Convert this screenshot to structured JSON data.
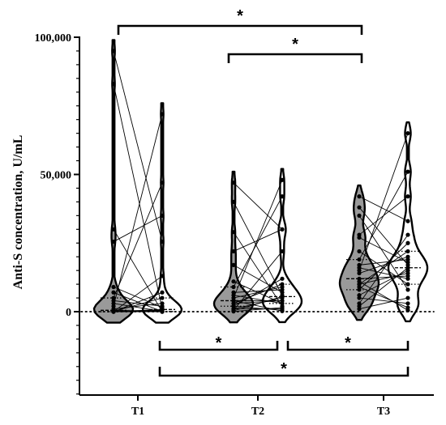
{
  "chart_data": {
    "type": "violin",
    "ylabel": "Anti-S concentration, U/mL",
    "ylim": [
      -30000,
      100000
    ],
    "yticks": [
      0,
      50000,
      100000
    ],
    "ytick_labels": [
      "0",
      "50,000",
      "100,000"
    ],
    "categories": [
      "T1",
      "T2",
      "T3"
    ],
    "reference_line_y": 0,
    "series": [
      {
        "group": "T1",
        "violin": "left",
        "values": [
          95000,
          83000,
          30000,
          25500,
          9000,
          7000,
          5000,
          4000,
          3000,
          2000,
          1000,
          500,
          200,
          100,
          50,
          50,
          0,
          0,
          0,
          0,
          0,
          0
        ]
      },
      {
        "group": "T1",
        "violin": "right",
        "values": [
          72000,
          47000,
          35000,
          25500,
          13000,
          7000,
          5000,
          3000,
          2000,
          1500,
          1000,
          800,
          500,
          300,
          200,
          100,
          50,
          0,
          0,
          0,
          0,
          0
        ]
      },
      {
        "group": "T2",
        "violin": "left",
        "values": [
          47000,
          40000,
          29000,
          22000,
          17000,
          11000,
          9000,
          7000,
          6000,
          5000,
          5000,
          4000,
          4000,
          3000,
          3000,
          2000,
          2000,
          1000,
          1000,
          500,
          300,
          100
        ]
      },
      {
        "group": "T2",
        "violin": "right",
        "values": [
          48000,
          42000,
          30000,
          30000,
          22000,
          12000,
          10000,
          9000,
          8000,
          7000,
          6000,
          5500,
          5000,
          4000,
          4000,
          3000,
          3000,
          2000,
          1500,
          1000,
          500,
          200
        ]
      },
      {
        "group": "T3",
        "violin": "left",
        "values": [
          42000,
          38000,
          35000,
          28000,
          27000,
          22000,
          19000,
          17000,
          16000,
          15000,
          14000,
          12000,
          11000,
          10000,
          10000,
          9000,
          8000,
          6000,
          5000,
          3000,
          2000,
          1000
        ]
      },
      {
        "group": "T3",
        "violin": "right",
        "values": [
          65000,
          51000,
          42000,
          33000,
          28000,
          25000,
          22000,
          20000,
          19000,
          18000,
          17000,
          16000,
          15000,
          14000,
          13000,
          12000,
          10000,
          8000,
          5000,
          3000,
          1500,
          500
        ]
      }
    ],
    "significance": [
      {
        "from": "T1",
        "to": "T3",
        "label": "*",
        "position": "top"
      },
      {
        "from": "T2",
        "to": "T3",
        "label": "*",
        "position": "top"
      },
      {
        "from": "T1",
        "to": "T2",
        "label": "*",
        "position": "bottom"
      },
      {
        "from": "T2",
        "to": "T3",
        "label": "*",
        "position": "bottom"
      },
      {
        "from": "T1",
        "to": "T3",
        "label": "*",
        "position": "bottom"
      }
    ],
    "colors": {
      "left_fill": "#9a9a9a",
      "right_fill": "#ffffff",
      "stroke": "#000000"
    }
  }
}
